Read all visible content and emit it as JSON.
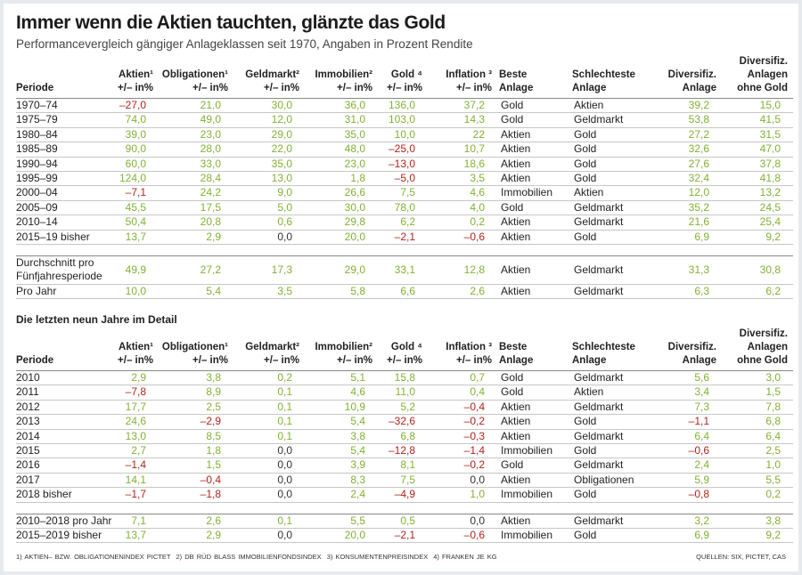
{
  "header": {
    "title": "Immer wenn die Aktien tauchten, glänzte das Gold",
    "subtitle": "Performancevergleich gängiger Anlageklassen seit 1970, Angaben in Prozent Rendite"
  },
  "sections": [
    {
      "columns": [
        [
          "Periode"
        ],
        [
          "Aktien¹",
          "+/– in%"
        ],
        [
          "Obligationen¹",
          "+/– in%"
        ],
        [
          "Geldmarkt²",
          "+/– in%"
        ],
        [
          "Immobilien²",
          "+/– in%"
        ],
        [
          "Gold ⁴",
          "+/– in%"
        ],
        [
          "Inflation ³",
          "+/– in%"
        ],
        [
          "Beste",
          "Anlage"
        ],
        [
          "Schlechteste",
          "Anlage"
        ],
        [
          "Diversifiz.",
          "Anlage"
        ],
        [
          "Diversifiz.",
          "Anlagen",
          "ohne Gold"
        ]
      ],
      "rows": [
        [
          "1970–74",
          "–27,0",
          "21,0",
          "30,0",
          "36,0",
          "136,0",
          "37,2",
          "Gold",
          "Aktien",
          "39,2",
          "15,0"
        ],
        [
          "1975–79",
          "74,0",
          "49,0",
          "12,0",
          "31,0",
          "103,0",
          "14,3",
          "Gold",
          "Geldmarkt",
          "53,8",
          "41,5"
        ],
        [
          "1980–84",
          "39,0",
          "23,0",
          "29,0",
          "35,0",
          "10,0",
          "22",
          "Aktien",
          "Gold",
          "27,2",
          "31,5"
        ],
        [
          "1985–89",
          "90,0",
          "28,0",
          "22,0",
          "48,0",
          "–25,0",
          "10,7",
          "Aktien",
          "Gold",
          "32,6",
          "47,0"
        ],
        [
          "1990–94",
          "60,0",
          "33,0",
          "35,0",
          "23,0",
          "–13,0",
          "18,6",
          "Aktien",
          "Gold",
          "27,6",
          "37,8"
        ],
        [
          "1995–99",
          "124,0",
          "28,4",
          "13,0",
          "1,8",
          "–5,0",
          "3,5",
          "Aktien",
          "Gold",
          "32,4",
          "41,8"
        ],
        [
          "2000–04",
          "–7,1",
          "24,2",
          "9,0",
          "26,6",
          "7,5",
          "4,6",
          "Immobilien",
          "Aktien",
          "12,0",
          "13,2"
        ],
        [
          "2005–09",
          "45,5",
          "17,5",
          "5,0",
          "30,0",
          "78,0",
          "4,0",
          "Gold",
          "Geldmarkt",
          "35,2",
          "24,5"
        ],
        [
          "2010–14",
          "50,4",
          "20,8",
          "0,6",
          "29,8",
          "6,2",
          "0,2",
          "Aktien",
          "Geldmarkt",
          "21,6",
          "25,4"
        ],
        [
          "2015–19 bisher",
          "13,7",
          "2,9",
          "0,0",
          "20,0",
          "–2,1",
          "–0,6",
          "Aktien",
          "Gold",
          "6,9",
          "9,2"
        ]
      ],
      "summary_rows": [
        [
          [
            "Durchschnitt pro",
            "Fünfjahresperiode"
          ],
          "49,9",
          "27,2",
          "17,3",
          "29,0",
          "33,1",
          "12,8",
          "Aktien",
          "Geldmarkt",
          "31,3",
          "30,8"
        ],
        [
          "Pro Jahr",
          "10,0",
          "5,4",
          "3,5",
          "5,8",
          "6,6",
          "2,6",
          "Aktien",
          "Geldmarkt",
          "6,3",
          "6,2"
        ]
      ]
    },
    {
      "title": "Die letzten neun Jahre im Detail",
      "columns": [
        [
          "Periode"
        ],
        [
          "Aktien¹",
          "+/– in%"
        ],
        [
          "Obligationen¹",
          "+/– in%"
        ],
        [
          "Geldmarkt²",
          "+/– in%"
        ],
        [
          "Immobilien²",
          "+/– in%"
        ],
        [
          "Gold ⁴",
          "+/– in%"
        ],
        [
          "Inflation ³",
          "+/– in%"
        ],
        [
          "Beste",
          "Anlage"
        ],
        [
          "Schlechteste",
          "Anlage"
        ],
        [
          "Diversifiz.",
          "Anlage"
        ],
        [
          "Diversifiz.",
          "Anlagen",
          "ohne Gold"
        ]
      ],
      "rows": [
        [
          "2010",
          "2,9",
          "3,8",
          "0,2",
          "5,1",
          "15,8",
          "0,7",
          "Gold",
          "Geldmarkt",
          "5,6",
          "3,0"
        ],
        [
          "2011",
          "–7,8",
          "8,9",
          "0,1",
          "4,6",
          "11,0",
          "0,4",
          "Gold",
          "Aktien",
          "3,4",
          "1,5"
        ],
        [
          "2012",
          "17,7",
          "2,5",
          "0,1",
          "10,9",
          "5,2",
          "–0,4",
          "Aktien",
          "Geldmarkt",
          "7,3",
          "7,8"
        ],
        [
          "2013",
          "24,6",
          "–2,9",
          "0,1",
          "5,4",
          "–32,6",
          "–0,2",
          "Aktien",
          "Gold",
          "–1,1",
          "6,8"
        ],
        [
          "2014",
          "13,0",
          "8,5",
          "0,1",
          "3,8",
          "6,8",
          "–0,3",
          "Aktien",
          "Geldmarkt",
          "6,4",
          "6,4"
        ],
        [
          "2015",
          "2,7",
          "1,8",
          "0,0",
          "5,4",
          "–12,8",
          "–1,4",
          "Immobilien",
          "Gold",
          "–0,6",
          "2,5"
        ],
        [
          "2016",
          "–1,4",
          "1,5",
          "0,0",
          "3,9",
          "8,1",
          "–0,2",
          "Gold",
          "Geldmarkt",
          "2,4",
          "1,0"
        ],
        [
          "2017",
          "14,1",
          "–0,4",
          "0,0",
          "8,3",
          "7,5",
          "0,0",
          "Aktien",
          "Obligationen",
          "5,9",
          "5,5"
        ],
        [
          "2018 bisher",
          "–1,7",
          "–1,8",
          "0,0",
          "2,4",
          "–4,9",
          "1,0",
          "Immobilien",
          "Gold",
          "–0,8",
          "0,2"
        ]
      ],
      "summary_rows": [
        [
          "2010–2018 pro Jahr",
          "7,1",
          "2,6",
          "0,1",
          "5,5",
          "0,5",
          "0,0",
          "Aktien",
          "Geldmarkt",
          "3,2",
          "3,8"
        ],
        [
          "2015–2019 bisher",
          "13,7",
          "2,9",
          "0,0",
          "20,0",
          "–2,1",
          "–0,6",
          "Immobilien",
          "Gold",
          "6,9",
          "9,2"
        ]
      ]
    }
  ],
  "footer": {
    "notes": [
      "1) AKTIEN– BZW. OBLIGATIONENINDEX PICTET",
      "2) DB RÜD BLASS IMMOBILIENFONDSINDEX",
      "3) KONSUMENTENPREISINDEX",
      "4) FRANKEN JE KG"
    ],
    "sources": "QUELLEN: SIX, PICTET, CAS"
  }
}
